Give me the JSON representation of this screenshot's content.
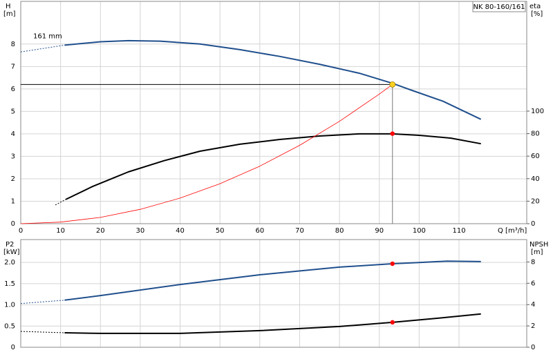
{
  "chart_data": [
    {
      "type": "line",
      "title": "NK 80-160/161",
      "x_label": "Q [m³/h]",
      "y_label": "H",
      "y_unit": "[m]",
      "y2_label": "eta",
      "y2_unit": "[%]",
      "annotation": "161 mm",
      "xlim": [
        0,
        127
      ],
      "xticks": [
        0,
        10,
        20,
        30,
        40,
        50,
        60,
        70,
        80,
        90,
        100,
        110
      ],
      "ylim": [
        0,
        9.9
      ],
      "yticks": [
        0,
        1,
        2,
        3,
        4,
        5,
        6,
        7,
        8
      ],
      "y2lim": [
        0,
        197.5
      ],
      "y2ticks": [
        0,
        20,
        40,
        60,
        80,
        100
      ],
      "grid": true,
      "series": [
        {
          "color": "#1f4e8c",
          "style": "dashed",
          "width": 1,
          "x": [
            0,
            11
          ],
          "values": [
            7.65,
            7.95
          ]
        },
        {
          "color": "#1f4e8c",
          "width": 2,
          "x": [
            11,
            20,
            27,
            35,
            45,
            55,
            65,
            75,
            85,
            93.3,
            98,
            106,
            115.5
          ],
          "values": [
            7.95,
            8.1,
            8.15,
            8.13,
            8.0,
            7.75,
            7.45,
            7.1,
            6.7,
            6.25,
            5.95,
            5.45,
            4.65
          ]
        },
        {
          "color": "#000000",
          "style": "dashed",
          "width": 1,
          "axis": "y2",
          "x": [
            8.7,
            11.3
          ],
          "values": [
            16.6,
            21.5
          ]
        },
        {
          "color": "#000000",
          "width": 2,
          "axis": "y2",
          "x": [
            11.3,
            18,
            27,
            36,
            45,
            55,
            65,
            75,
            85,
            93.3,
            100,
            108,
            115.5
          ],
          "values": [
            21.5,
            33,
            46,
            56,
            64.4,
            70.6,
            74.8,
            77.9,
            79.8,
            79.8,
            78.5,
            76,
            71
          ]
        },
        {
          "color": "#ff0000",
          "width": 0.8,
          "x": [
            0,
            10,
            20,
            30,
            40,
            50,
            60,
            70,
            80,
            90,
            93.3
          ],
          "values": [
            0,
            0.07,
            0.28,
            0.64,
            1.14,
            1.78,
            2.56,
            3.49,
            4.56,
            5.77,
            6.2
          ]
        }
      ],
      "markers": [
        {
          "x": 93.3,
          "y": 6.2,
          "color": "#ffd21f",
          "guide": true
        },
        {
          "x": 93.3,
          "y": 80,
          "axis": "y2",
          "color": "#ff0000"
        }
      ]
    },
    {
      "type": "line",
      "y_label": "P2",
      "y_unit": "[kW]",
      "y2_label": "NPSH",
      "y2_unit": "[m]",
      "xlim": [
        0,
        127
      ],
      "xticks": [
        0,
        10,
        20,
        30,
        40,
        50,
        60,
        70,
        80,
        90,
        100,
        110
      ],
      "xtick_labels": false,
      "ylim": [
        0,
        2.54
      ],
      "yticks": [
        0,
        0.5,
        {
          "value": 1,
          "label": "1.0"
        },
        1.5,
        {
          "value": 2,
          "label": "2.0"
        }
      ],
      "y2lim": [
        0,
        10.1
      ],
      "y2ticks": [
        0,
        2,
        4,
        6,
        8
      ],
      "grid": true,
      "series": [
        {
          "color": "#1f4e8c",
          "style": "dashed",
          "width": 1,
          "x": [
            0,
            11
          ],
          "values": [
            1.03,
            1.11
          ]
        },
        {
          "color": "#1f4e8c",
          "width": 2,
          "x": [
            11,
            20,
            40,
            60,
            80,
            93.3,
            100,
            107,
            115.5
          ],
          "values": [
            1.11,
            1.22,
            1.48,
            1.71,
            1.89,
            1.97,
            2.0,
            2.03,
            2.02
          ]
        },
        {
          "color": "#000000",
          "style": "dashed",
          "width": 1,
          "axis": "y2",
          "x": [
            0,
            11
          ],
          "values": [
            1.49,
            1.36
          ]
        },
        {
          "color": "#000000",
          "width": 2,
          "axis": "y2",
          "x": [
            11,
            20,
            40,
            60,
            80,
            93.3,
            105,
            115.5
          ],
          "values": [
            1.36,
            1.3,
            1.3,
            1.56,
            1.95,
            2.34,
            2.73,
            3.12
          ]
        }
      ],
      "markers": [
        {
          "x": 93.3,
          "y": 1.97,
          "color": "#ff0000"
        },
        {
          "x": 93.3,
          "y": 2.34,
          "axis": "y2",
          "color": "#ff0000"
        }
      ]
    }
  ]
}
